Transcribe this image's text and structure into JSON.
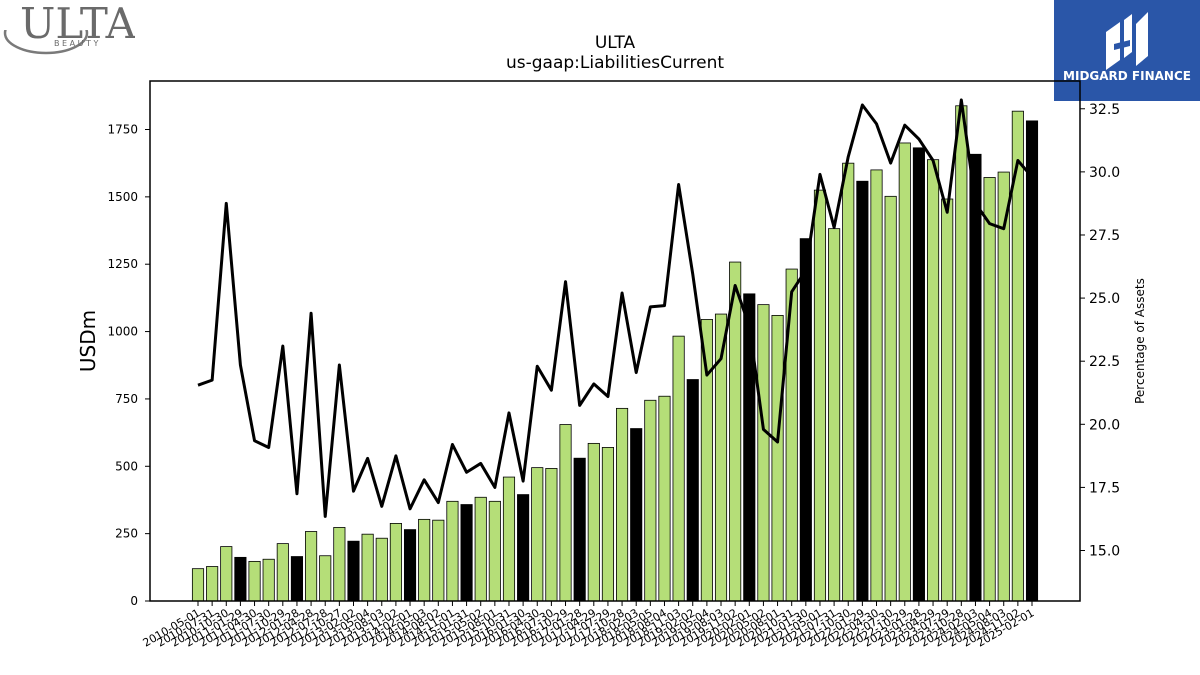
{
  "brand": {
    "left_logo_text": "ULTA",
    "left_logo_sub": "B E A U T Y",
    "right_logo_text": "MIDGARD FINANCE"
  },
  "colors": {
    "bar_normal": "#b5de78",
    "bar_highlight": "#000000",
    "line": "#000000",
    "logo_right_bg": "#2a56a8"
  },
  "chart_data": {
    "type": "bar",
    "title": "ULTA",
    "subtitle": "us-gaap:LiabilitiesCurrent",
    "ylabel": "USDm",
    "y2label": "Percentage of Assets",
    "ylim": [
      0,
      1930
    ],
    "y2lim": [
      13.0,
      33.6
    ],
    "yticks": [
      0,
      250,
      500,
      750,
      1000,
      1250,
      1500,
      1750
    ],
    "y2ticks": [
      15.0,
      17.5,
      20.0,
      22.5,
      25.0,
      27.5,
      30.0,
      32.5
    ],
    "x": [
      "2010-05-01",
      "2010-07-31",
      "2010-10-30",
      "2011-01-29",
      "2011-04-30",
      "2011-07-30",
      "2011-10-29",
      "2012-01-28",
      "2012-04-28",
      "2012-07-28",
      "2012-10-27",
      "2013-02-02",
      "2013-05-04",
      "2013-08-03",
      "2013-11-02",
      "2014-02-01",
      "2014-05-03",
      "2014-08-02",
      "2014-11-01",
      "2015-01-31",
      "2015-05-02",
      "2015-08-01",
      "2015-10-31",
      "2016-01-30",
      "2016-04-30",
      "2016-07-30",
      "2016-10-29",
      "2017-01-28",
      "2017-04-29",
      "2017-07-29",
      "2017-10-28",
      "2018-02-03",
      "2018-05-05",
      "2018-08-04",
      "2018-11-03",
      "2019-02-02",
      "2019-05-04",
      "2019-08-03",
      "2019-11-02",
      "2020-02-01",
      "2020-05-02",
      "2020-08-01",
      "2020-10-31",
      "2021-01-30",
      "2021-05-01",
      "2021-07-31",
      "2021-10-30",
      "2022-01-29",
      "2022-04-30",
      "2022-07-30",
      "2022-10-29",
      "2023-01-28",
      "2023-04-29",
      "2023-07-29",
      "2023-10-28",
      "2024-02-03",
      "2024-05-04",
      "2024-08-03",
      "2024-11-02",
      "2025-02-01"
    ],
    "values": [
      120,
      128,
      202,
      162,
      147,
      155,
      213,
      165,
      258,
      168,
      273,
      222,
      248,
      233,
      288,
      265,
      303,
      300,
      370,
      358,
      385,
      370,
      460,
      395,
      495,
      492,
      655,
      530,
      585,
      570,
      715,
      640,
      745,
      760,
      983,
      822,
      1045,
      1065,
      1258,
      1140,
      1100,
      1060,
      1232,
      1345,
      1525,
      1382,
      1625,
      1558,
      1600,
      1502,
      1700,
      1682,
      1638,
      1492,
      1838,
      1658,
      1572,
      1592,
      1818,
      1782
    ],
    "highlight": [
      false,
      false,
      false,
      true,
      false,
      false,
      false,
      true,
      false,
      false,
      false,
      true,
      false,
      false,
      false,
      true,
      false,
      false,
      false,
      true,
      false,
      false,
      false,
      true,
      false,
      false,
      false,
      true,
      false,
      false,
      false,
      true,
      false,
      false,
      false,
      true,
      false,
      false,
      false,
      true,
      false,
      false,
      false,
      true,
      false,
      false,
      false,
      true,
      false,
      false,
      false,
      true,
      false,
      false,
      false,
      true,
      false,
      false,
      false,
      true
    ],
    "pct_of_assets": [
      21.55,
      21.75,
      28.75,
      22.35,
      19.35,
      19.08,
      23.1,
      17.25,
      24.4,
      16.35,
      22.35,
      17.35,
      18.65,
      16.75,
      18.75,
      16.65,
      17.8,
      16.9,
      19.2,
      18.1,
      18.45,
      17.5,
      20.45,
      17.75,
      22.3,
      21.35,
      25.65,
      20.75,
      21.6,
      21.1,
      25.2,
      22.05,
      24.65,
      24.7,
      29.5,
      25.95,
      21.95,
      22.6,
      25.5,
      23.9,
      19.8,
      19.3,
      25.25,
      26.1,
      29.9,
      27.8,
      30.6,
      32.65,
      31.9,
      30.35,
      31.85,
      31.3,
      30.45,
      28.4,
      32.85,
      28.75,
      27.95,
      27.75,
      30.45,
      29.8
    ]
  }
}
